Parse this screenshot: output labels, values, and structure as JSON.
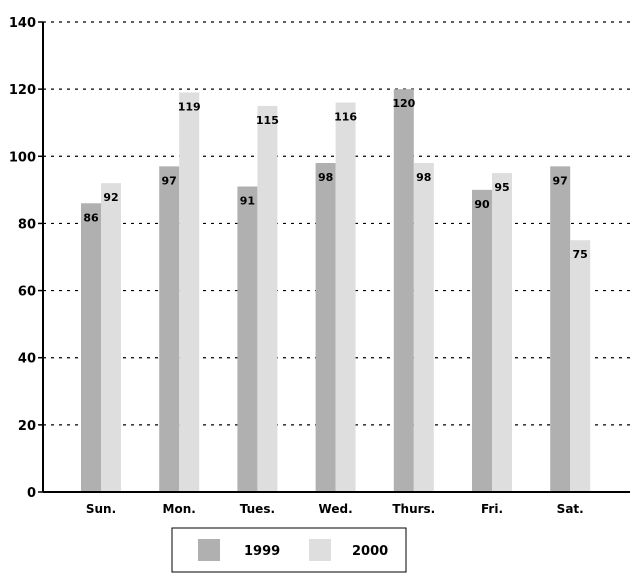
{
  "chart_data": {
    "type": "bar",
    "categories": [
      "Sun.",
      "Mon.",
      "Tues.",
      "Wed.",
      "Thurs.",
      "Fri.",
      "Sat."
    ],
    "series": [
      {
        "name": "1999",
        "values": [
          86,
          97,
          91,
          98,
          120,
          90,
          97
        ],
        "color": "#b0b0b0"
      },
      {
        "name": "2000",
        "values": [
          92,
          119,
          115,
          116,
          98,
          95,
          75
        ],
        "color": "#dedede"
      }
    ],
    "ylim": [
      0,
      140
    ],
    "yticks": [
      0,
      20,
      40,
      60,
      80,
      100,
      120,
      140
    ],
    "grid": true,
    "legend_position": "bottom-center",
    "title": "",
    "xlabel": "",
    "ylabel": ""
  }
}
